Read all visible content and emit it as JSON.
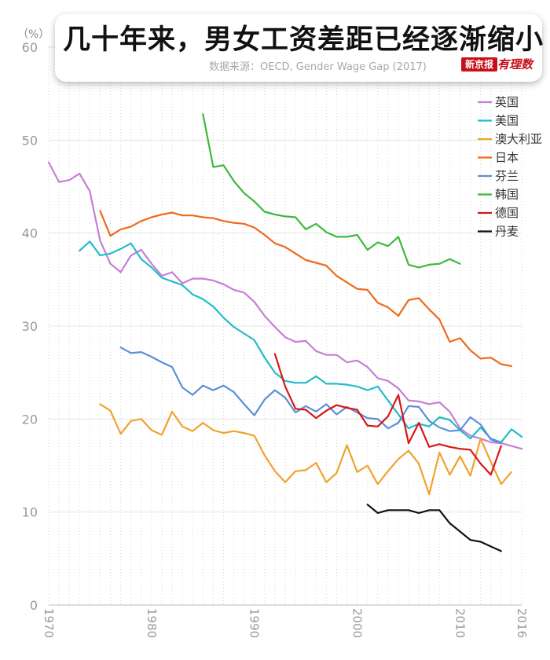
{
  "chart_data": {
    "type": "line",
    "title": "几十年来，男女工资差距已经逐渐缩小",
    "source": "数据来源：OECD, Gender Wage Gap (2017)",
    "brand": "新京报",
    "brand_logo": "有理数",
    "ylabel": "（%）",
    "xlabel": "",
    "xlim": [
      1970,
      2016
    ],
    "ylim": [
      0,
      60
    ],
    "yticks": [
      0,
      10,
      20,
      30,
      40,
      50,
      60
    ],
    "xticks": [
      1970,
      1980,
      1990,
      2000,
      2010,
      2016
    ],
    "grid": true,
    "legend_position": "right",
    "series": [
      {
        "name": "英国",
        "color": "#c77ed6",
        "x": [
          1970,
          1971,
          1972,
          1973,
          1974,
          1975,
          1976,
          1977,
          1978,
          1979,
          1980,
          1981,
          1982,
          1983,
          1984,
          1985,
          1986,
          1987,
          1988,
          1989,
          1990,
          1991,
          1992,
          1993,
          1994,
          1995,
          1996,
          1997,
          1998,
          1999,
          2000,
          2001,
          2002,
          2003,
          2004,
          2005,
          2006,
          2007,
          2008,
          2009,
          2010,
          2011,
          2012,
          2013,
          2014,
          2015,
          2016
        ],
        "y": [
          47.6,
          45.5,
          45.7,
          46.4,
          44.5,
          39.2,
          36.7,
          35.8,
          37.6,
          38.2,
          36.7,
          35.4,
          35.8,
          34.6,
          35.1,
          35.1,
          34.9,
          34.5,
          33.9,
          33.6,
          32.6,
          31.1,
          29.9,
          28.8,
          28.3,
          28.4,
          27.3,
          26.9,
          26.9,
          26.1,
          26.3,
          25.6,
          24.4,
          24.1,
          23.3,
          22.0,
          21.9,
          21.6,
          21.8,
          20.8,
          19.0,
          18.2,
          17.9,
          17.5,
          17.4,
          17.1,
          16.8
        ]
      },
      {
        "name": "美国",
        "color": "#22bccc",
        "x": [
          1973,
          1974,
          1975,
          1976,
          1977,
          1978,
          1979,
          1980,
          1981,
          1982,
          1983,
          1984,
          1985,
          1986,
          1987,
          1988,
          1989,
          1990,
          1991,
          1992,
          1993,
          1994,
          1995,
          1996,
          1997,
          1998,
          1999,
          2000,
          2001,
          2002,
          2003,
          2004,
          2005,
          2006,
          2007,
          2008,
          2009,
          2010,
          2011,
          2012,
          2013,
          2014,
          2015,
          2016
        ],
        "y": [
          38.1,
          39.1,
          37.6,
          37.8,
          38.3,
          38.9,
          37.2,
          36.3,
          35.2,
          34.8,
          34.4,
          33.4,
          32.9,
          32.1,
          30.9,
          29.9,
          29.2,
          28.5,
          26.6,
          25.0,
          24.1,
          23.9,
          23.9,
          24.6,
          23.8,
          23.8,
          23.7,
          23.5,
          23.1,
          23.5,
          22.0,
          20.5,
          19.0,
          19.5,
          19.2,
          20.2,
          19.9,
          18.8,
          17.9,
          19.1,
          17.9,
          17.5,
          18.9,
          18.1
        ]
      },
      {
        "name": "澳大利亚",
        "color": "#f0a22e",
        "x": [
          1975,
          1976,
          1977,
          1978,
          1979,
          1980,
          1981,
          1982,
          1983,
          1984,
          1985,
          1986,
          1987,
          1988,
          1989,
          1990,
          1991,
          1992,
          1993,
          1994,
          1995,
          1996,
          1997,
          1998,
          1999,
          2000,
          2001,
          2002,
          2003,
          2004,
          2005,
          2006,
          2007,
          2008,
          2009,
          2010,
          2011,
          2012,
          2013,
          2014,
          2015
        ],
        "y": [
          21.6,
          20.9,
          18.4,
          19.8,
          20.0,
          18.8,
          18.3,
          20.8,
          19.2,
          18.7,
          19.6,
          18.8,
          18.5,
          18.7,
          18.5,
          18.2,
          16.1,
          14.4,
          13.2,
          14.4,
          14.5,
          15.3,
          13.2,
          14.2,
          17.2,
          14.3,
          15.0,
          13.0,
          14.4,
          15.7,
          16.6,
          15.2,
          11.9,
          16.4,
          14.0,
          16.0,
          13.9,
          17.9,
          15.4,
          13.0,
          14.3
        ]
      },
      {
        "name": "日本",
        "color": "#ee6a1b",
        "x": [
          1975,
          1976,
          1977,
          1978,
          1979,
          1980,
          1981,
          1982,
          1983,
          1984,
          1985,
          1986,
          1987,
          1988,
          1989,
          1990,
          1991,
          1992,
          1993,
          1994,
          1995,
          1996,
          1997,
          1998,
          1999,
          2000,
          2001,
          2002,
          2003,
          2004,
          2005,
          2006,
          2007,
          2008,
          2009,
          2010,
          2011,
          2012,
          2013,
          2014,
          2015
        ],
        "y": [
          42.4,
          39.7,
          40.4,
          40.7,
          41.3,
          41.7,
          42.0,
          42.2,
          41.9,
          41.9,
          41.7,
          41.6,
          41.3,
          41.1,
          41.0,
          40.6,
          39.8,
          38.9,
          38.5,
          37.8,
          37.1,
          36.8,
          36.5,
          35.4,
          34.7,
          34.0,
          33.9,
          32.5,
          32.0,
          31.1,
          32.8,
          33.0,
          31.8,
          30.7,
          28.3,
          28.7,
          27.4,
          26.5,
          26.6,
          25.9,
          25.7
        ]
      },
      {
        "name": "芬兰",
        "color": "#5b8fd8",
        "x": [
          1977,
          1978,
          1979,
          1980,
          1981,
          1982,
          1983,
          1984,
          1985,
          1986,
          1987,
          1988,
          1989,
          1990,
          1991,
          1992,
          1993,
          1994,
          1995,
          1996,
          1997,
          1998,
          1999,
          2000,
          2001,
          2002,
          2003,
          2004,
          2005,
          2006,
          2007,
          2008,
          2009,
          2010,
          2011,
          2012,
          2013,
          2014
        ],
        "y": [
          27.7,
          27.1,
          27.2,
          26.7,
          26.1,
          25.6,
          23.4,
          22.6,
          23.6,
          23.1,
          23.6,
          22.9,
          21.6,
          20.4,
          22.1,
          23.1,
          22.3,
          20.7,
          21.4,
          20.8,
          21.6,
          20.5,
          21.3,
          20.7,
          20.1,
          20.0,
          19.0,
          19.6,
          21.4,
          21.3,
          19.8,
          19.1,
          18.7,
          18.8,
          20.2,
          19.4,
          17.8,
          17.4
        ]
      },
      {
        "name": "韩国",
        "color": "#3db83d",
        "x": [
          1985,
          1986,
          1987,
          1988,
          1989,
          1990,
          1991,
          1992,
          1993,
          1994,
          1995,
          1996,
          1997,
          1998,
          1999,
          2000,
          2001,
          2002,
          2003,
          2004,
          2005,
          2006,
          2007,
          2008,
          2009,
          2010
        ],
        "y": [
          52.8,
          47.1,
          47.3,
          45.6,
          44.3,
          43.4,
          42.3,
          42.0,
          41.8,
          41.7,
          40.4,
          41.0,
          40.1,
          39.6,
          39.6,
          39.8,
          38.2,
          39.0,
          38.6,
          39.6,
          36.6,
          36.3,
          36.6,
          36.7,
          37.2,
          36.7
        ]
      },
      {
        "name": "德国",
        "color": "#d91616",
        "x": [
          1992,
          1993,
          1994,
          1995,
          1996,
          1997,
          1998,
          1999,
          2000,
          2001,
          2002,
          2003,
          2004,
          2005,
          2006,
          2007,
          2008,
          2009,
          2010,
          2011,
          2012,
          2013,
          2014
        ],
        "y": [
          27.0,
          23.5,
          21.1,
          21.0,
          20.1,
          20.9,
          21.5,
          21.2,
          21.0,
          19.3,
          19.2,
          20.3,
          22.6,
          17.4,
          19.6,
          17.0,
          17.3,
          17.0,
          16.8,
          16.7,
          15.2,
          14.0,
          17.1
        ]
      },
      {
        "name": "丹麦",
        "color": "#111111",
        "x": [
          2001,
          2002,
          2003,
          2004,
          2005,
          2006,
          2007,
          2008,
          2009,
          2010,
          2011,
          2012,
          2013,
          2014
        ],
        "y": [
          10.8,
          9.9,
          10.2,
          10.2,
          10.2,
          9.9,
          10.2,
          10.2,
          8.8,
          7.9,
          7.0,
          6.8,
          6.3,
          5.8
        ]
      }
    ]
  }
}
